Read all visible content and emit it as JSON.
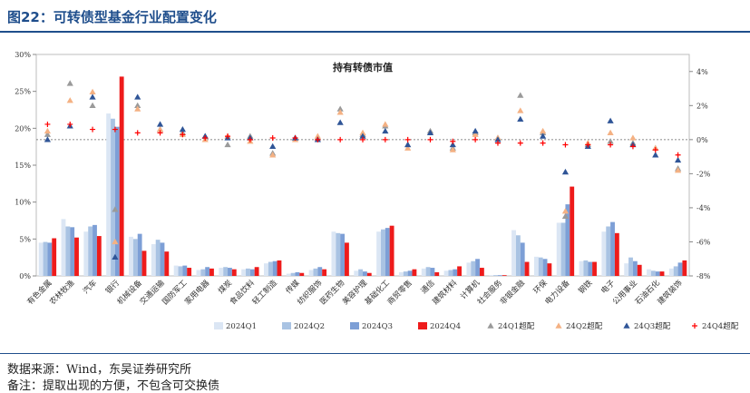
{
  "figure_title": "图22：可转债型基金行业配置变化",
  "source": "数据来源：Wind，东吴证券研究所",
  "note": "备注：提取出现的方便，不包含可交换债",
  "colors": {
    "title": "#1f4e8c",
    "q1": "#dbe6f4",
    "q2": "#a9c3e3",
    "q3": "#7d9fd6",
    "q4": "#ee1b1b",
    "m_q1": "#9a9a9a",
    "m_q2": "#f4b183",
    "m_q3": "#2f5597",
    "m_q4": "#ff0000"
  },
  "chart_data": {
    "type": "bar",
    "title": "持有转债市值",
    "categories": [
      "有色金属",
      "农林牧渔",
      "汽车",
      "银行",
      "机械设备",
      "交通运输",
      "国防军工",
      "家用电器",
      "煤炭",
      "食品饮料",
      "轻工制造",
      "传媒",
      "纺织服饰",
      "医药生物",
      "美容护理",
      "基础化工",
      "商贸零售",
      "通信",
      "建筑材料",
      "计算机",
      "社会服务",
      "非银金融",
      "环保",
      "电力设备",
      "钢铁",
      "电子",
      "公用事业",
      "石油石化",
      "建筑装饰"
    ],
    "left_axis": {
      "min": 0,
      "max": 30,
      "ticks": [
        "0%",
        "5%",
        "10%",
        "15%",
        "20%",
        "25%",
        "30%"
      ]
    },
    "right_axis": {
      "min": -8,
      "max": 5,
      "ticks": [
        "-8%",
        "-6%",
        "-4%",
        "-2%",
        "0%",
        "2%",
        "4%"
      ]
    },
    "series": [
      {
        "name": "2024Q1",
        "kind": "bar",
        "values": [
          4.5,
          7.7,
          6.0,
          22.0,
          5.3,
          4.3,
          1.4,
          0.8,
          1.1,
          0.9,
          1.7,
          0.3,
          0.8,
          6.0,
          0.7,
          6.0,
          0.5,
          1.0,
          0.7,
          1.8,
          0.1,
          6.2,
          2.6,
          7.2,
          2.0,
          6.0,
          1.7,
          0.9,
          1.0
        ]
      },
      {
        "name": "2024Q2",
        "kind": "bar",
        "values": [
          4.6,
          6.7,
          6.7,
          21.3,
          5.0,
          4.9,
          1.3,
          0.9,
          1.2,
          1.0,
          1.9,
          0.4,
          1.0,
          5.8,
          0.9,
          6.3,
          0.6,
          1.2,
          0.8,
          2.0,
          0.1,
          5.5,
          2.5,
          7.2,
          2.1,
          6.7,
          2.5,
          0.7,
          1.3
        ]
      },
      {
        "name": "2024Q3",
        "kind": "bar",
        "values": [
          4.5,
          6.6,
          6.9,
          20.2,
          5.7,
          4.5,
          1.4,
          1.2,
          1.1,
          0.9,
          2.0,
          0.5,
          1.2,
          5.7,
          0.6,
          6.5,
          0.7,
          1.1,
          0.9,
          2.3,
          0.1,
          4.5,
          2.3,
          9.7,
          1.9,
          7.3,
          2.0,
          0.6,
          1.8
        ]
      },
      {
        "name": "2024Q4",
        "kind": "bar",
        "values": [
          5.1,
          5.2,
          5.4,
          27.0,
          3.4,
          3.3,
          1.1,
          1.0,
          0.9,
          1.2,
          2.1,
          0.4,
          0.9,
          4.5,
          0.4,
          6.8,
          0.9,
          0.5,
          1.3,
          1.1,
          0.1,
          1.9,
          1.7,
          12.1,
          1.9,
          5.8,
          1.5,
          0.6,
          2.1
        ]
      },
      {
        "name": "24Q1超配",
        "kind": "marker",
        "shape": "triangle-gray",
        "values": [
          0.3,
          3.3,
          2.0,
          -4.1,
          2.0,
          0.6,
          0.4,
          0.2,
          -0.3,
          0.2,
          -0.8,
          0.1,
          0.1,
          1.8,
          0.3,
          0.8,
          -0.3,
          0.5,
          -0.5,
          0.4,
          0.1,
          2.6,
          0.4,
          -4.5,
          -0.3,
          -0.1,
          -0.2,
          -0.5,
          -1.7
        ]
      },
      {
        "name": "24Q2超配",
        "kind": "marker",
        "shape": "triangle-orange",
        "values": [
          0.5,
          2.3,
          2.8,
          -6.0,
          1.8,
          0.6,
          0.3,
          0.0,
          0.2,
          -0.1,
          -0.9,
          0.0,
          0.2,
          1.6,
          0.4,
          0.9,
          -0.5,
          0.4,
          -0.6,
          0.3,
          0.1,
          1.7,
          0.5,
          -4.2,
          -0.2,
          0.4,
          0.1,
          -0.5,
          -1.8
        ]
      },
      {
        "name": "24Q3超配",
        "kind": "marker",
        "shape": "triangle-navy",
        "values": [
          0.0,
          0.8,
          2.5,
          -6.9,
          2.5,
          0.9,
          0.6,
          0.2,
          0.1,
          0.1,
          -0.4,
          0.1,
          0.0,
          1.0,
          0.2,
          0.5,
          -0.3,
          0.4,
          -0.3,
          0.5,
          0.0,
          1.2,
          0.2,
          -1.9,
          -0.4,
          1.1,
          -0.3,
          -0.9,
          -1.2
        ]
      },
      {
        "name": "24Q4超配",
        "kind": "marker",
        "shape": "plus-red",
        "values": [
          0.9,
          0.9,
          0.6,
          0.6,
          0.4,
          0.4,
          0.3,
          0.1,
          0.2,
          0.0,
          0.1,
          0.1,
          0.0,
          0.0,
          0.0,
          0.0,
          0.0,
          0.0,
          -0.1,
          0.0,
          -0.2,
          -0.2,
          -0.2,
          -0.3,
          -0.3,
          -0.3,
          -0.4,
          -0.6,
          -0.9
        ]
      }
    ],
    "legend": [
      "2024Q1",
      "2024Q2",
      "2024Q3",
      "2024Q4",
      "24Q1超配",
      "24Q2超配",
      "24Q3超配",
      "24Q4超配"
    ],
    "legend_position": "bottom",
    "zero_reference_line": "dotted"
  }
}
